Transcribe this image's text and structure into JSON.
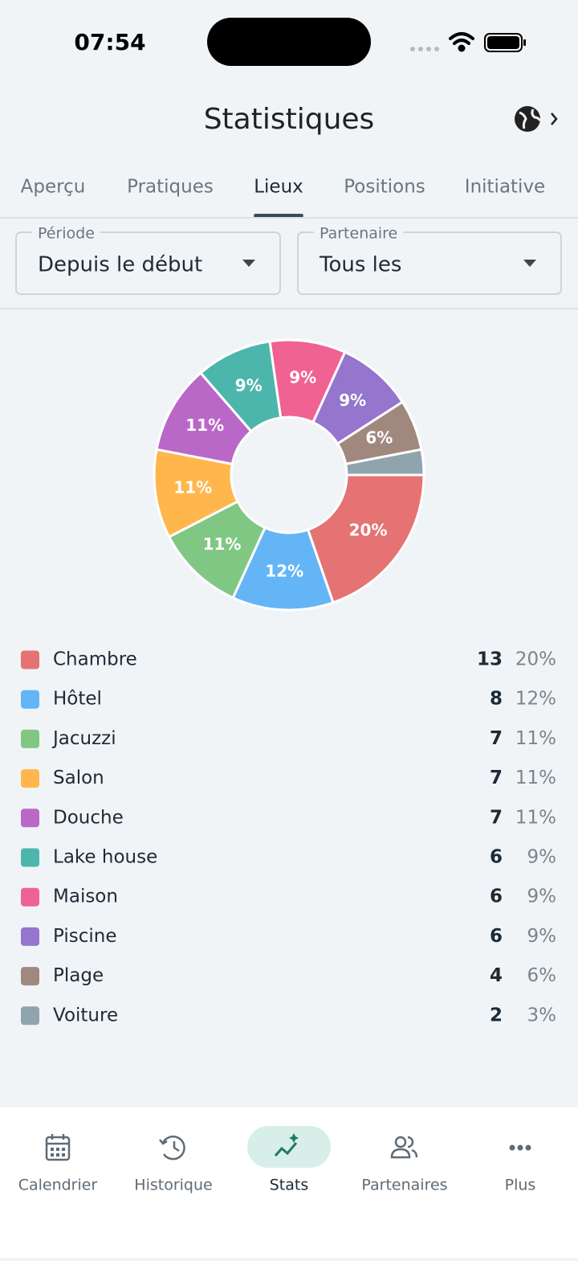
{
  "status_bar": {
    "time": "07:54"
  },
  "header": {
    "title": "Statistiques"
  },
  "tabs": {
    "items": [
      "Aperçu",
      "Pratiques",
      "Lieux",
      "Positions",
      "Initiative"
    ],
    "active": 2
  },
  "filters": [
    {
      "label": "Période",
      "value": "Depuis le début"
    },
    {
      "label": "Partenaire",
      "value": "Tous les"
    }
  ],
  "chart_data": {
    "type": "pie",
    "categories": [
      "Chambre",
      "Hôtel",
      "Jacuzzi",
      "Salon",
      "Douche",
      "Lake house",
      "Maison",
      "Piscine",
      "Plage",
      "Voiture"
    ],
    "values": [
      13,
      8,
      7,
      7,
      7,
      6,
      6,
      6,
      4,
      2
    ],
    "percent_labels": [
      "20%",
      "12%",
      "11%",
      "11%",
      "11%",
      "9%",
      "9%",
      "9%",
      "6%",
      "3%"
    ],
    "colors": [
      "#e57373",
      "#64b5f6",
      "#81c784",
      "#ffb74d",
      "#ba68c8",
      "#4db6ac",
      "#f06292",
      "#9575cd",
      "#a1887f",
      "#90a4ae"
    ]
  },
  "nav": {
    "items": [
      "Calendrier",
      "Historique",
      "Stats",
      "Partenaires",
      "Plus"
    ],
    "active": 2
  }
}
